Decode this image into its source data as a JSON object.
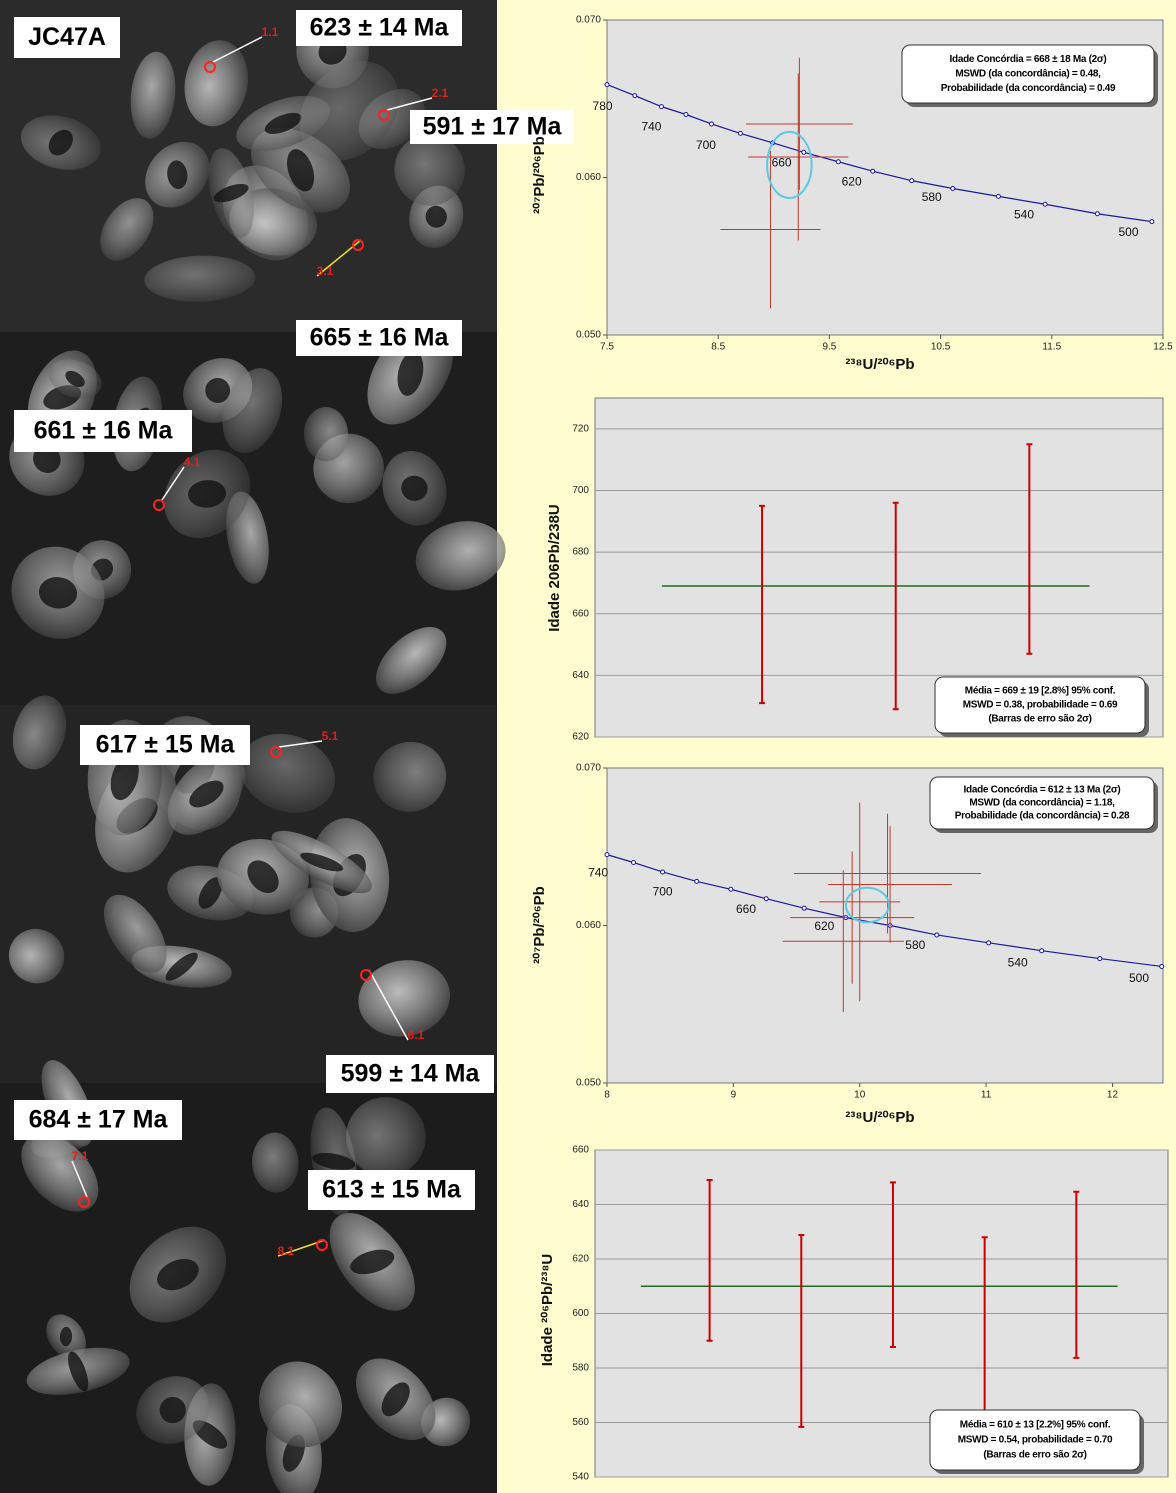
{
  "photos": {
    "panels": [
      {
        "labels": [
          "JC47A",
          "623 ± 14 Ma",
          "591 ± 17 Ma",
          "665 ± 16 Ma"
        ],
        "spots": [
          "1.1",
          "2.1",
          "3.1"
        ]
      },
      {
        "labels": [
          "661 ± 16 Ma"
        ],
        "spots": [
          "4.1"
        ]
      },
      {
        "labels": [
          "617 ± 15 Ma",
          "599 ± 14 Ma"
        ],
        "spots": [
          "5.1",
          "6.1"
        ]
      },
      {
        "labels": [
          "684 ± 17 Ma",
          "613 ± 15 Ma"
        ],
        "spots": [
          "7.1",
          "8.1"
        ]
      }
    ]
  },
  "chart_data": [
    {
      "type": "concordia",
      "x_label": "²³⁸U/²⁰⁶Pb",
      "y_label": "²⁰⁷Pb/²⁰⁶Pb",
      "xlim": [
        7.5,
        12.5
      ],
      "ylim": [
        0.05,
        0.07
      ],
      "xticks": [
        7.5,
        8.5,
        9.5,
        10.5,
        11.5,
        12.5
      ],
      "yticks": [
        {
          "value": 0.05,
          "label": "0.050"
        },
        {
          "value": 0.06,
          "label": "0.060"
        },
        {
          "value": 0.07,
          "label": "0.070"
        }
      ],
      "concordia": {
        "color": "#1a1aa0",
        "x": [
          7.5,
          7.75,
          7.99,
          8.21,
          8.44,
          8.7,
          8.99,
          9.27,
          9.58,
          9.89,
          10.24,
          10.61,
          11.02,
          11.44,
          11.91,
          12.4
        ],
        "y": [
          0.0659,
          0.0652,
          0.0645,
          0.064,
          0.0634,
          0.0628,
          0.0622,
          0.0616,
          0.061,
          0.0604,
          0.0598,
          0.0593,
          0.0588,
          0.0583,
          0.0577,
          0.0572
        ]
      },
      "age_labels": [
        {
          "age": 780,
          "x": 7.46,
          "y": 0.0645
        },
        {
          "age": 740,
          "x": 7.9,
          "y": 0.0632
        },
        {
          "age": 700,
          "x": 8.39,
          "y": 0.062
        },
        {
          "age": 660,
          "x": 9.07,
          "y": 0.0609
        },
        {
          "age": 620,
          "x": 9.7,
          "y": 0.0597
        },
        {
          "age": 580,
          "x": 10.42,
          "y": 0.0587
        },
        {
          "age": 540,
          "x": 11.25,
          "y": 0.0576
        },
        {
          "age": 500,
          "x": 12.19,
          "y": 0.0565
        }
      ],
      "series": [
        {
          "color": "#c0392b",
          "x": [
            9.22,
            9.23,
            8.97
          ],
          "y": [
            0.0613,
            0.0634,
            0.0567
          ],
          "x_err": [
            0.45,
            0.48,
            0.45
          ],
          "y_err": [
            0.0053,
            0.0042,
            0.005
          ]
        }
      ],
      "ellipse": {
        "color": "#5bc8e6",
        "x": 9.14,
        "y": 0.0608,
        "x_radius": 0.2,
        "y_radius": 0.0021
      },
      "annotation": [
        "Idade Concórdia = 668 ± 18 Ma (2σ)",
        "MSWD (da concordância) = 0.48,",
        "Probabilidade (da concordância) = 0.49"
      ]
    },
    {
      "type": "errorbar",
      "y_label": "Idade 206Pb/238U",
      "ylim": [
        620,
        730
      ],
      "yticks": [
        620,
        640,
        660,
        680,
        700,
        720
      ],
      "grid": true,
      "values": [
        663,
        662.5,
        681
      ],
      "errors": [
        32,
        33.5,
        34
      ],
      "color": "#cc0000",
      "mean": {
        "value": 669,
        "color": "#1f6b1f"
      },
      "annotation": [
        "Média = 669 ± 19  [2.8%]  95% conf.",
        "MSWD = 0.38, probabilidade = 0.69",
        "(Barras de erro são 2σ)"
      ]
    },
    {
      "type": "concordia",
      "x_label": "²³⁸U/²⁰⁶Pb",
      "y_label": "²⁰⁷Pb/²⁰⁶Pb",
      "xlim": [
        8,
        12.4
      ],
      "ylim": [
        0.05,
        0.07
      ],
      "xticks": [
        8,
        9,
        10,
        11,
        12
      ],
      "yticks": [
        {
          "value": 0.05,
          "label": "0.050"
        },
        {
          "value": 0.06,
          "label": "0.060"
        },
        {
          "value": 0.07,
          "label": "0.070"
        }
      ],
      "concordia": {
        "color": "#1a1aa0",
        "x": [
          8.0,
          8.21,
          8.44,
          8.71,
          8.98,
          9.26,
          9.56,
          9.89,
          10.24,
          10.61,
          11.02,
          11.44,
          11.9,
          12.39
        ],
        "y": [
          0.0645,
          0.064,
          0.0634,
          0.0628,
          0.0623,
          0.0617,
          0.0611,
          0.0605,
          0.06,
          0.0594,
          0.0589,
          0.0584,
          0.0579,
          0.0574
        ]
      },
      "age_labels": [
        {
          "age": 740,
          "x": 7.93,
          "y": 0.0633
        },
        {
          "age": 700,
          "x": 8.44,
          "y": 0.0621
        },
        {
          "age": 660,
          "x": 9.1,
          "y": 0.061
        },
        {
          "age": 620,
          "x": 9.72,
          "y": 0.0599
        },
        {
          "age": 580,
          "x": 10.44,
          "y": 0.0587
        },
        {
          "age": 540,
          "x": 11.25,
          "y": 0.0576
        },
        {
          "age": 500,
          "x": 12.21,
          "y": 0.0566
        }
      ],
      "series": [
        {
          "color": "#c0392b",
          "x": [
            10.22,
            10.24,
            9.94,
            9.87,
            10.0
          ],
          "y": [
            0.0633,
            0.0626,
            0.0605,
            0.059,
            0.0615
          ],
          "x_err": [
            0.74,
            0.49,
            0.49,
            0.48,
            0.32
          ],
          "y_err": [
            0.0038,
            0.0037,
            0.0042,
            0.0045,
            0.0063
          ]
        }
      ],
      "ellipse": {
        "color": "#5bc8e6",
        "x": 10.06,
        "y": 0.0613,
        "x_radius": 0.17,
        "y_radius": 0.0011
      },
      "annotation": [
        "Idade Concórdia = 612 ± 13 Ma (2σ)",
        "MSWD (da concordância) = 1.18,",
        "Probabilidade (da concordância) = 0.28"
      ]
    },
    {
      "type": "errorbar",
      "y_label": "Idade ²⁰⁶Pb/²³⁸U",
      "ylim": [
        540,
        660
      ],
      "yticks": [
        540,
        560,
        580,
        600,
        620,
        640,
        660
      ],
      "grid": true,
      "values": [
        619.5,
        593.6,
        617.9,
        589,
        614.2
      ],
      "errors": [
        29.5,
        35.2,
        30.2,
        39,
        30.5
      ],
      "color": "#cc0000",
      "mean": {
        "value": 610,
        "color": "#1f6b1f"
      },
      "annotation": [
        "Média = 610 ± 13  [2.2%]  95% conf.",
        "MSWD = 0.54, probabilidade = 0.70",
        "(Barras de erro são 2σ)"
      ]
    }
  ]
}
